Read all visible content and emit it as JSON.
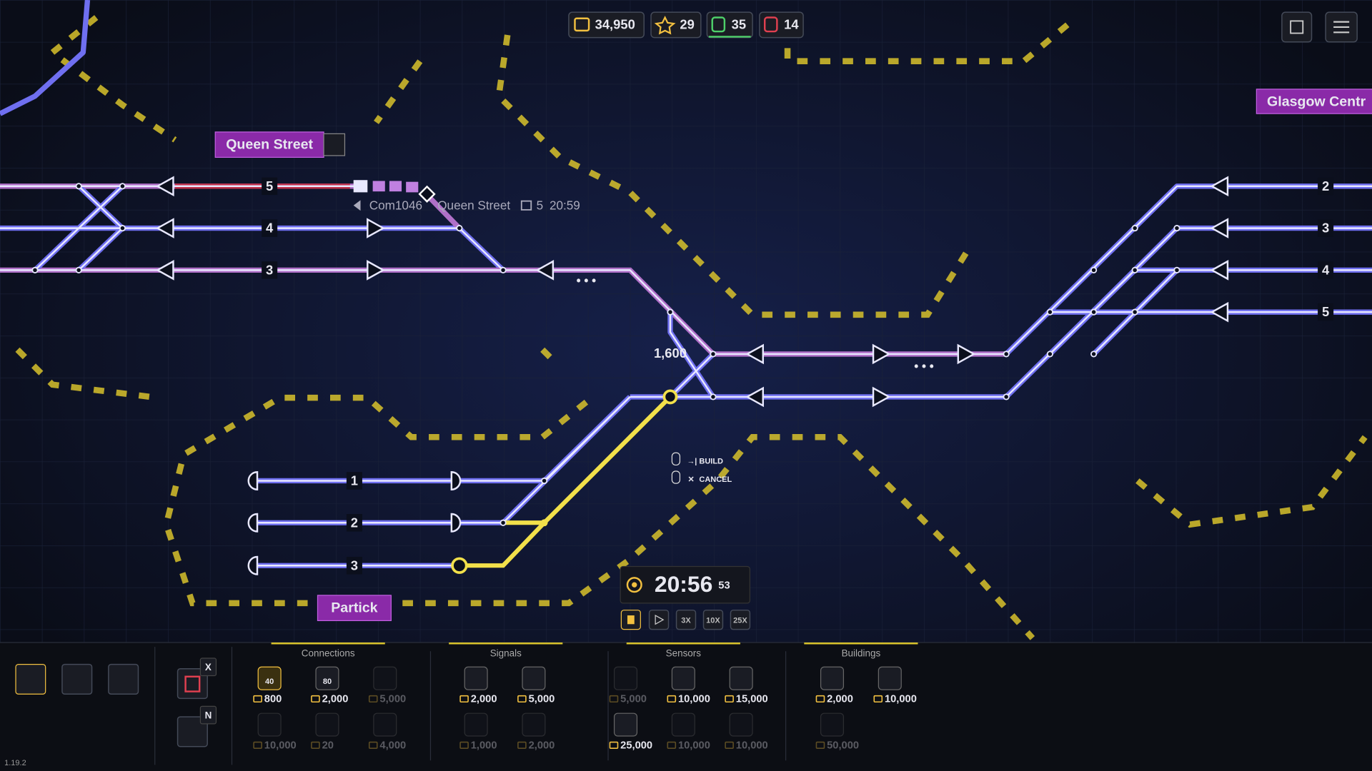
{
  "hud": {
    "money": "34,950",
    "stars": "29",
    "trains_active": "35",
    "trains_idle": "14"
  },
  "stations": {
    "queen_street": "Queen Street",
    "glasgow_central": "Glasgow Centr",
    "partick": "Partick"
  },
  "platforms": {
    "queen_street": [
      "5",
      "4",
      "3"
    ],
    "partick": [
      "1",
      "2",
      "3"
    ],
    "glasgow_central": [
      "2",
      "3",
      "4",
      "5"
    ]
  },
  "train_tooltip": {
    "id": "Com1046",
    "destination": "Queen Street",
    "platform": "5",
    "time": "20:59"
  },
  "track_cost": "1,600",
  "hints": {
    "build": "BUILD",
    "cancel": "CANCEL"
  },
  "clock": {
    "time": "20:56",
    "seconds": "53",
    "speeds": [
      "3X",
      "10X",
      "25X"
    ]
  },
  "toolbar": {
    "delete_key": "X",
    "shop_key": "N",
    "version": "1.19.2"
  },
  "shop": {
    "sections": [
      {
        "title": "Connections",
        "items": [
          {
            "icon": "40",
            "cost": "800"
          },
          {
            "icon": "80",
            "cost": "2,000"
          },
          {
            "cost": "5,000"
          },
          {
            "cost": "10,000"
          },
          {
            "cost": "20"
          },
          {
            "cost": "4,000"
          }
        ]
      },
      {
        "title": "Signals",
        "items": [
          {
            "cost": "2,000"
          },
          {
            "cost": "5,000"
          },
          {
            "cost": "1,000"
          },
          {
            "cost": "2,000"
          }
        ]
      },
      {
        "title": "Sensors",
        "items": [
          {
            "cost": "5,000"
          },
          {
            "cost": "10,000"
          },
          {
            "cost": "15,000"
          },
          {
            "cost": "25,000"
          },
          {
            "cost": "10,000"
          },
          {
            "cost": "10,000"
          }
        ]
      },
      {
        "title": "Buildings",
        "items": [
          {
            "cost": "2,000"
          },
          {
            "cost": "10,000"
          },
          {
            "cost": "50,000"
          }
        ]
      }
    ]
  }
}
